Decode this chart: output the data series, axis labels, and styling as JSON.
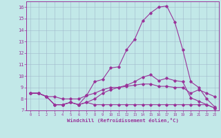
{
  "xlabel": "Windchill (Refroidissement éolien,°C)",
  "xlim": [
    -0.5,
    23.5
  ],
  "ylim": [
    7,
    16.5
  ],
  "yticks": [
    7,
    8,
    9,
    10,
    11,
    12,
    13,
    14,
    15,
    16
  ],
  "xticks": [
    0,
    1,
    2,
    3,
    4,
    5,
    6,
    7,
    8,
    9,
    10,
    11,
    12,
    13,
    14,
    15,
    16,
    17,
    18,
    19,
    20,
    21,
    22,
    23
  ],
  "background_color": "#c2e8e8",
  "grid_color": "#a0b8cc",
  "line_color": "#993399",
  "line_main_x": [
    0,
    1,
    2,
    3,
    4,
    5,
    6,
    7,
    8,
    9,
    10,
    11,
    12,
    13,
    14,
    15,
    16,
    17,
    18,
    19,
    20,
    21,
    22,
    23
  ],
  "line_main_y": [
    8.5,
    8.5,
    8.2,
    7.5,
    7.5,
    7.7,
    7.5,
    8.3,
    9.5,
    9.7,
    10.7,
    10.8,
    12.3,
    13.2,
    14.8,
    15.5,
    16.0,
    16.1,
    14.7,
    12.3,
    9.5,
    9.0,
    8.0,
    7.3
  ],
  "line_mid_x": [
    0,
    1,
    2,
    3,
    4,
    5,
    6,
    7,
    8,
    9,
    10,
    11,
    12,
    13,
    14,
    15,
    16,
    17,
    18,
    19,
    20,
    21,
    22,
    23
  ],
  "line_mid_y": [
    8.5,
    8.5,
    8.2,
    8.2,
    8.0,
    8.0,
    8.0,
    8.3,
    8.5,
    8.8,
    9.0,
    9.0,
    9.1,
    9.2,
    9.3,
    9.3,
    9.1,
    9.1,
    9.0,
    9.0,
    8.5,
    8.8,
    8.5,
    8.2
  ],
  "line_low_x": [
    0,
    1,
    2,
    3,
    4,
    5,
    6,
    7,
    8,
    9,
    10,
    11,
    12,
    13,
    14,
    15,
    16,
    17,
    18,
    19,
    20,
    21,
    22,
    23
  ],
  "line_low_y": [
    8.5,
    8.5,
    8.2,
    7.5,
    7.5,
    7.7,
    7.5,
    7.7,
    7.5,
    7.5,
    7.5,
    7.5,
    7.5,
    7.5,
    7.5,
    7.5,
    7.5,
    7.5,
    7.5,
    7.5,
    7.5,
    7.5,
    7.5,
    7.2
  ],
  "line_upper_x": [
    0,
    1,
    2,
    3,
    4,
    5,
    6,
    7,
    8,
    9,
    10,
    11,
    12,
    13,
    14,
    15,
    16,
    17,
    18,
    19,
    20,
    21,
    22,
    23
  ],
  "line_upper_y": [
    8.5,
    8.5,
    8.2,
    7.5,
    7.5,
    7.7,
    7.5,
    7.7,
    8.0,
    8.5,
    8.8,
    9.0,
    9.2,
    9.5,
    9.9,
    10.1,
    9.6,
    9.8,
    9.6,
    9.5,
    8.1,
    7.8,
    7.5,
    7.2
  ]
}
